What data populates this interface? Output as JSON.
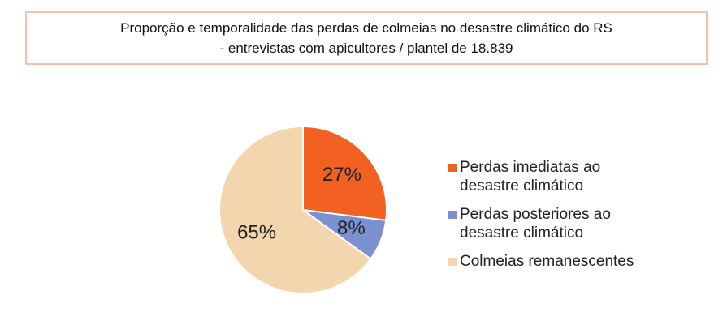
{
  "chart_data": {
    "type": "pie",
    "title": [
      "Proporção e temporalidade das perdas de colmeias no desastre climático do RS",
      "- entrevistas com apicultores / plantel de 18.839"
    ],
    "categories": [
      "Perdas imediatas ao desastre climático",
      "Perdas posteriores ao desastre climático",
      "Colmeias remanescentes"
    ],
    "values": [
      27,
      8,
      65
    ],
    "value_labels": [
      "27%",
      "8%",
      "65%"
    ],
    "colors": [
      "#f26122",
      "#7b90d0",
      "#f3d6ad"
    ],
    "legend": "right"
  }
}
